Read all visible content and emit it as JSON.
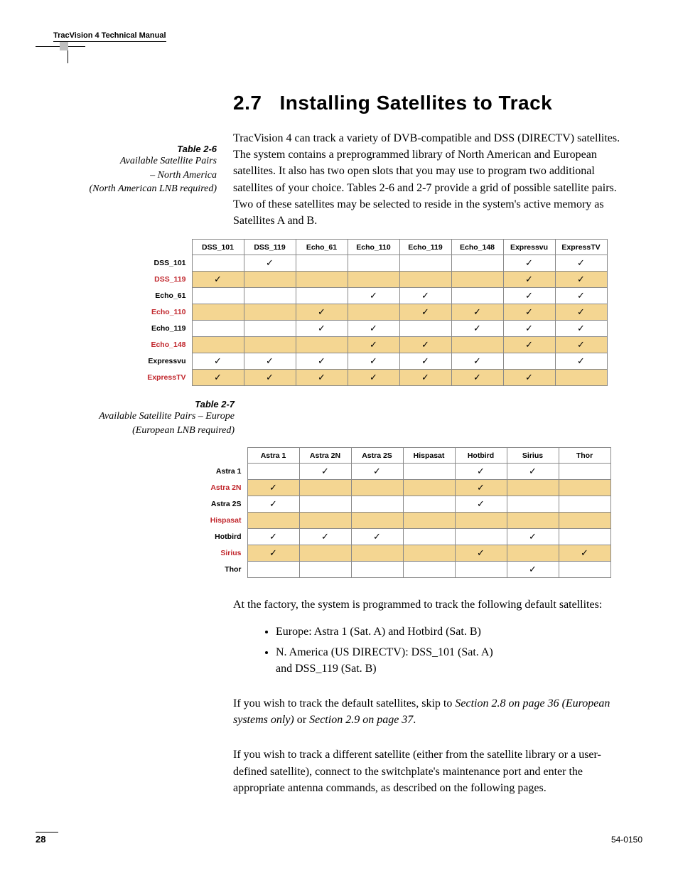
{
  "header": {
    "manual_title": "TracVision 4 Technical Manual"
  },
  "section": {
    "number": "2.7",
    "title": "Installing Satellites to Track",
    "intro": "TracVision 4 can track a variety of DVB-compatible and DSS (DIRECTV) satellites. The system contains a preprogrammed library of North American and European satellites. It also has two open slots that you may use to program two additional satellites of your choice. Tables 2-6 and 2-7 provide a grid of possible satellite pairs. Two of these satellites may be selected to reside in the system's active memory as Satellites A and B."
  },
  "table26": {
    "label": "Table 2-6",
    "desc_line1": "Available Satellite Pairs",
    "desc_line2": "– North America",
    "desc_line3": "(North American LNB required)",
    "col_width_head": 80,
    "col_width_data": 73,
    "shaded_bg": "#f4d692",
    "shaded_text": "#c1272d",
    "columns": [
      "DSS_101",
      "DSS_119",
      "Echo_61",
      "Echo_110",
      "Echo_119",
      "Echo_148",
      "Expressvu",
      "ExpressTV"
    ],
    "rows": [
      {
        "name": "DSS_101",
        "shaded": false,
        "checks": [
          0,
          1,
          0,
          0,
          0,
          0,
          1,
          1
        ]
      },
      {
        "name": "DSS_119",
        "shaded": true,
        "checks": [
          1,
          0,
          0,
          0,
          0,
          0,
          1,
          1
        ]
      },
      {
        "name": "Echo_61",
        "shaded": false,
        "checks": [
          0,
          0,
          0,
          1,
          1,
          0,
          1,
          1
        ]
      },
      {
        "name": "Echo_110",
        "shaded": true,
        "checks": [
          0,
          0,
          1,
          0,
          1,
          1,
          1,
          1
        ]
      },
      {
        "name": "Echo_119",
        "shaded": false,
        "checks": [
          0,
          0,
          1,
          1,
          0,
          1,
          1,
          1
        ]
      },
      {
        "name": "Echo_148",
        "shaded": true,
        "checks": [
          0,
          0,
          0,
          1,
          1,
          0,
          1,
          1
        ]
      },
      {
        "name": "Expressvu",
        "shaded": false,
        "checks": [
          1,
          1,
          1,
          1,
          1,
          1,
          0,
          1
        ]
      },
      {
        "name": "ExpressTV",
        "shaded": true,
        "checks": [
          1,
          1,
          1,
          1,
          1,
          1,
          1,
          0
        ]
      }
    ]
  },
  "table27": {
    "label": "Table 2-7",
    "desc_line1": "Available Satellite Pairs – Europe",
    "desc_line2": "(European LNB required)",
    "col_width_head": 78,
    "col_width_data": 73,
    "columns": [
      "Astra 1",
      "Astra 2N",
      "Astra 2S",
      "Hispasat",
      "Hotbird",
      "Sirius",
      "Thor"
    ],
    "rows": [
      {
        "name": "Astra 1",
        "shaded": false,
        "checks": [
          0,
          1,
          1,
          0,
          1,
          1,
          0
        ]
      },
      {
        "name": "Astra 2N",
        "shaded": true,
        "checks": [
          1,
          0,
          0,
          0,
          1,
          0,
          0
        ]
      },
      {
        "name": "Astra 2S",
        "shaded": false,
        "checks": [
          1,
          0,
          0,
          0,
          1,
          0,
          0
        ]
      },
      {
        "name": "Hispasat",
        "shaded": true,
        "checks": [
          0,
          0,
          0,
          0,
          0,
          0,
          0
        ]
      },
      {
        "name": "Hotbird",
        "shaded": false,
        "checks": [
          1,
          1,
          1,
          0,
          0,
          1,
          0
        ]
      },
      {
        "name": "Sirius",
        "shaded": true,
        "checks": [
          1,
          0,
          0,
          0,
          1,
          0,
          1
        ]
      },
      {
        "name": "Thor",
        "shaded": false,
        "checks": [
          0,
          0,
          0,
          0,
          0,
          1,
          0
        ]
      }
    ]
  },
  "after": {
    "para1": "At the factory, the system is programmed to track the following default satellites:",
    "bullet1": "Europe: Astra 1 (Sat. A) and Hotbird (Sat. B)",
    "bullet2a": "N. America (US DIRECTV): DSS_101 (Sat. A)",
    "bullet2b": "and DSS_119 (Sat. B)",
    "para2a": "If you wish to track the default satellites, skip to ",
    "link1": "Section 2.8 on page 36 (European systems only)",
    "para2b": " or ",
    "link2": "Section 2.9 on page 37",
    "para2c": ".",
    "para3": "If you wish to track a different satellite (either from the satellite library or a user-defined satellite), connect to the switchplate's maintenance port and enter the appropriate antenna commands, as described on the following pages."
  },
  "footer": {
    "page": "28",
    "docnum": "54-0150"
  }
}
